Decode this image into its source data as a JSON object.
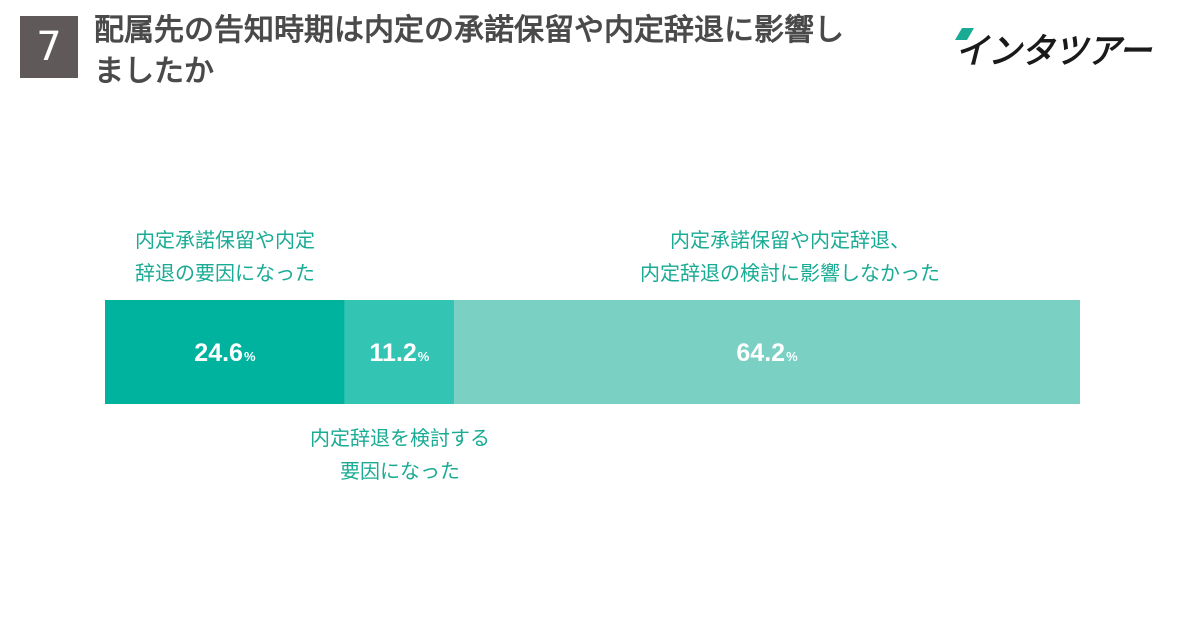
{
  "header": {
    "question_number": "7",
    "title": "配属先の告知時期は内定の承諾保留や内定辞退に影響しましたか",
    "logo_text": "インタツアー"
  },
  "colors": {
    "number_box": "#5f5a59",
    "title_text": "#4a4a4a",
    "label_text": "#1aab94",
    "logo_text": "#1a1a1a",
    "logo_accent": "#1aab94"
  },
  "chart_data": {
    "type": "bar",
    "orientation": "horizontal-stacked",
    "unit": "%",
    "xlim": [
      0,
      100
    ],
    "grid": false,
    "legend": "none",
    "series": [
      {
        "name": "内定承諾保留や内定辞退の要因になった",
        "value": 24.6,
        "label_text": "24.6",
        "label_lines": [
          "内定承諾保留や内定",
          "辞退の要因になった"
        ],
        "label_position": "above",
        "color": "#00b39f"
      },
      {
        "name": "内定辞退を検討する要因になった",
        "value": 11.2,
        "label_text": "11.2",
        "label_lines": [
          "内定辞退を検討する",
          "要因になった"
        ],
        "label_position": "below",
        "color": "#33c4b3"
      },
      {
        "name": "内定承諾保留や内定辞退、内定辞退の検討に影響しなかった",
        "value": 64.2,
        "label_text": "64.2",
        "label_lines": [
          "内定承諾保留や内定辞退、",
          "内定辞退の検討に影響しなかった"
        ],
        "label_position": "above",
        "color": "#7ad0c3"
      }
    ]
  }
}
